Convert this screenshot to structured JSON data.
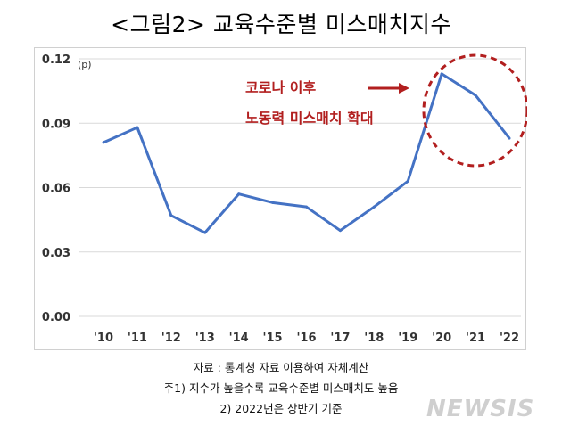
{
  "chart_data": {
    "type": "line",
    "title": "<그림2> 교육수준별 미스매치지수",
    "unit": "(p)",
    "categories": [
      "'10",
      "'11",
      "'12",
      "'13",
      "'14",
      "'15",
      "'16",
      "'17",
      "'18",
      "'19",
      "'20",
      "'21",
      "'22"
    ],
    "series": [
      {
        "values": [
          0.081,
          0.088,
          0.047,
          0.039,
          0.057,
          0.053,
          0.051,
          0.04,
          0.051,
          0.063,
          0.113,
          0.103,
          0.083
        ]
      }
    ],
    "ylim": [
      0,
      0.12
    ],
    "yticks": [
      "0.00",
      "0.03",
      "0.06",
      "0.09",
      "0.12"
    ],
    "grid": true,
    "annotation": {
      "line1": "코로나 이후",
      "line2": "노동력 미스매치 확대",
      "arrow": "→"
    },
    "colors": {
      "line": "#4472c4",
      "annotation": "#b21f1f",
      "circle": "#b21f1f",
      "grid": "#d9d9d9"
    }
  },
  "notes": {
    "source": "자료 : 통계청 자료 이용하여 자체계산",
    "note1": "주1) 지수가 높을수록 교육수준별 미스매치도 높음",
    "note2": "2) 2022년은 상반기 기준"
  },
  "watermark": "NEWSIS"
}
